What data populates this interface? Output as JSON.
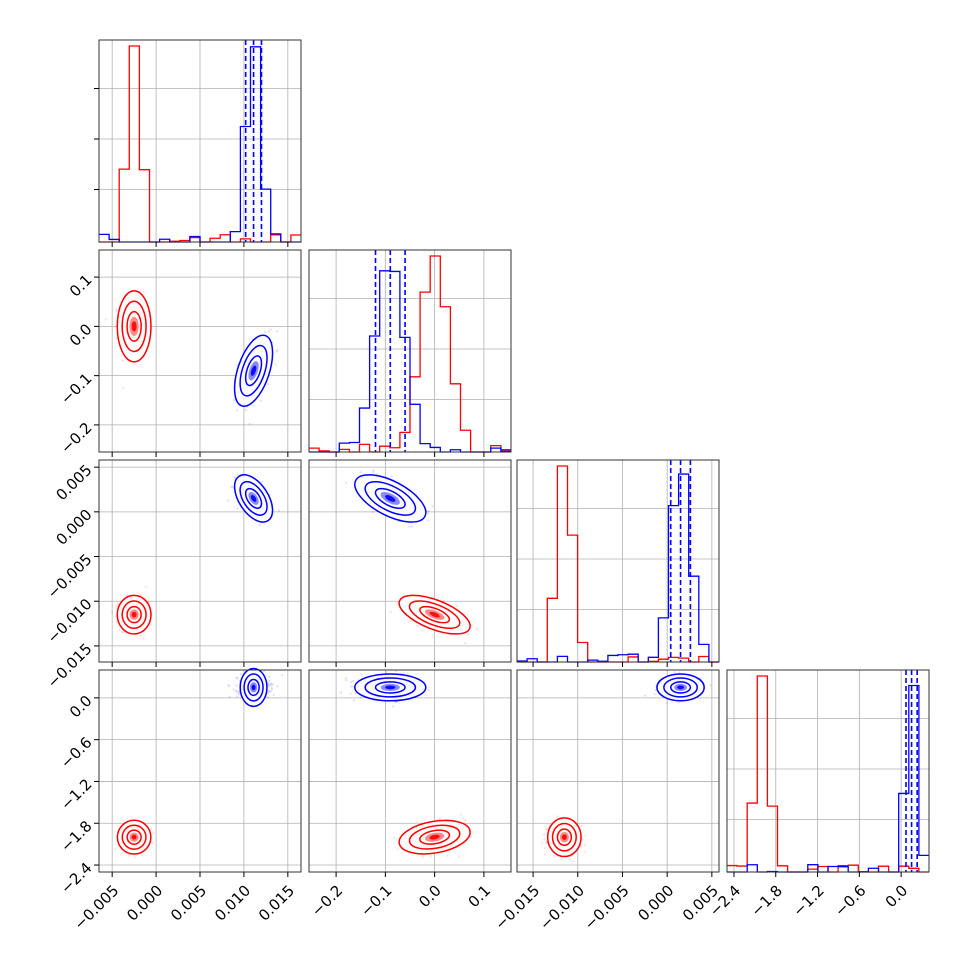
{
  "colors": {
    "series_a": "#ff0000",
    "series_b": "#0000ff",
    "grid": "#b0b0b0"
  },
  "chart_data": {
    "type": "scatter",
    "kind": "corner-plot",
    "grid": true,
    "parameters": [
      {
        "range": [
          -0.0065,
          0.0165
        ],
        "ticks": [
          -0.005,
          0.0,
          0.005,
          0.01,
          0.015
        ],
        "tick_labels": [
          "−0.005",
          "0.000",
          "0.005",
          "0.010",
          "0.015"
        ]
      },
      {
        "range": [
          -0.255,
          0.155
        ],
        "ticks": [
          -0.2,
          -0.1,
          0.0,
          0.1
        ],
        "tick_labels": [
          "−0.2",
          "−0.1",
          "0.0",
          "0.1"
        ]
      },
      {
        "range": [
          -0.0168,
          0.0058
        ],
        "ticks": [
          -0.015,
          -0.01,
          -0.005,
          0.0,
          0.005
        ],
        "tick_labels": [
          "−0.015",
          "−0.010",
          "−0.005",
          "0.000",
          "0.005"
        ]
      },
      {
        "range": [
          -2.5,
          0.4
        ],
        "ticks": [
          -2.4,
          -1.8,
          -1.2,
          -0.6,
          0.0
        ],
        "tick_labels": [
          "−2.4",
          "−1.8",
          "−1.2",
          "−0.6",
          "0.0"
        ]
      }
    ],
    "series": [
      {
        "color": "#ff0000",
        "means": [
          -0.0025,
          0.0,
          -0.0115,
          -2.0
        ],
        "sigmas": [
          0.0008,
          0.03,
          0.0009,
          0.1
        ],
        "quantile_lines": false,
        "correlations": [
          [
            0,
            1,
            0.0
          ],
          [
            0,
            2,
            0.0
          ],
          [
            0,
            3,
            0.0
          ],
          [
            1,
            2,
            -0.6
          ],
          [
            1,
            3,
            0.3
          ],
          [
            2,
            3,
            0.0
          ]
        ]
      },
      {
        "color": "#0000ff",
        "means": [
          0.0111,
          -0.09,
          0.0015,
          0.15
        ],
        "sigmas": [
          0.0009,
          0.03,
          0.0011,
          0.08
        ],
        "quantile_lines": true,
        "correlations": [
          [
            0,
            1,
            0.5
          ],
          [
            0,
            2,
            -0.5
          ],
          [
            0,
            3,
            0.0
          ],
          [
            1,
            2,
            -0.6
          ],
          [
            1,
            3,
            0.0
          ],
          [
            2,
            3,
            0.0
          ]
        ]
      }
    ]
  }
}
